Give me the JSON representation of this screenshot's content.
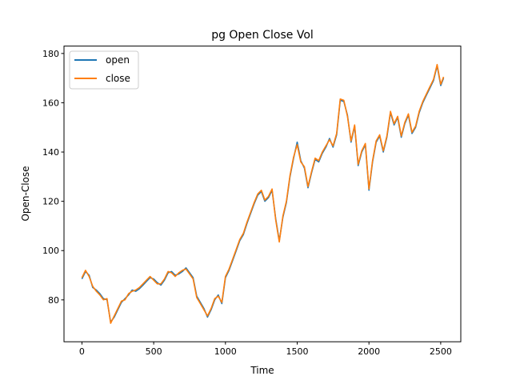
{
  "chart_data": {
    "type": "line",
    "title": "pg Open Close Vol",
    "xlabel": "Time",
    "ylabel": "Open-Close",
    "xlim": [
      -125,
      2640
    ],
    "ylim": [
      63,
      183
    ],
    "xticks": [
      0,
      500,
      1000,
      1500,
      2000,
      2500
    ],
    "yticks": [
      80,
      100,
      120,
      140,
      160,
      180
    ],
    "grid": false,
    "legend": {
      "position": "top-left"
    },
    "x": [
      0,
      25,
      50,
      75,
      100,
      125,
      150,
      175,
      200,
      225,
      250,
      275,
      300,
      325,
      350,
      375,
      400,
      425,
      450,
      475,
      500,
      525,
      550,
      575,
      600,
      625,
      650,
      675,
      700,
      725,
      750,
      775,
      800,
      825,
      850,
      875,
      900,
      925,
      950,
      975,
      1000,
      1025,
      1050,
      1075,
      1100,
      1125,
      1150,
      1175,
      1200,
      1225,
      1250,
      1275,
      1300,
      1325,
      1350,
      1375,
      1400,
      1425,
      1450,
      1475,
      1500,
      1525,
      1550,
      1575,
      1600,
      1625,
      1650,
      1675,
      1700,
      1725,
      1750,
      1775,
      1800,
      1825,
      1850,
      1875,
      1900,
      1925,
      1950,
      1975,
      2000,
      2025,
      2050,
      2075,
      2100,
      2125,
      2150,
      2175,
      2200,
      2225,
      2250,
      2275,
      2300,
      2325,
      2350,
      2375,
      2400,
      2425,
      2450,
      2475,
      2500,
      2520
    ],
    "series": [
      {
        "name": "open",
        "color": "#1f77b4",
        "values": [
          88.5,
          91.5,
          90.0,
          85.0,
          84.0,
          82.5,
          80.5,
          80.0,
          71.0,
          73.0,
          76.0,
          79.0,
          80.5,
          82.0,
          84.0,
          83.5,
          84.5,
          86.0,
          87.5,
          89.0,
          88.5,
          87.0,
          86.0,
          88.0,
          91.0,
          91.5,
          90.0,
          90.5,
          91.5,
          93.0,
          91.0,
          89.0,
          81.5,
          79.0,
          76.5,
          73.0,
          76.0,
          80.0,
          82.0,
          78.5,
          89.0,
          92.0,
          96.0,
          100.0,
          104.0,
          106.5,
          111.0,
          115.0,
          119.0,
          122.5,
          124.0,
          120.0,
          121.5,
          124.5,
          113.0,
          104.0,
          113.5,
          119.5,
          130.0,
          137.5,
          144.0,
          136.5,
          133.5,
          125.5,
          131.5,
          137.0,
          136.0,
          139.5,
          142.0,
          145.5,
          142.0,
          147.0,
          161.0,
          160.5,
          155.0,
          144.0,
          150.5,
          134.5,
          140.0,
          143.0,
          124.5,
          136.0,
          144.0,
          146.5,
          140.0,
          146.0,
          156.0,
          151.0,
          154.0,
          146.0,
          151.5,
          155.0,
          147.5,
          150.0,
          156.0,
          160.0,
          163.0,
          166.0,
          169.0,
          175.0,
          167.0,
          170.0
        ]
      },
      {
        "name": "close",
        "color": "#ff7f0e",
        "values": [
          89.0,
          92.0,
          89.5,
          85.5,
          83.5,
          82.0,
          80.0,
          80.5,
          70.5,
          73.5,
          76.5,
          79.5,
          80.0,
          82.5,
          83.5,
          84.0,
          85.0,
          86.5,
          88.0,
          89.5,
          88.0,
          86.5,
          86.5,
          88.5,
          91.5,
          91.0,
          89.5,
          91.0,
          92.0,
          92.5,
          90.5,
          88.5,
          81.0,
          78.5,
          76.0,
          73.5,
          76.5,
          80.5,
          81.5,
          79.0,
          89.5,
          92.5,
          96.5,
          100.5,
          104.5,
          107.0,
          111.5,
          115.5,
          119.5,
          123.0,
          124.5,
          120.5,
          122.0,
          125.0,
          112.5,
          103.5,
          114.0,
          120.0,
          130.5,
          138.0,
          143.0,
          136.0,
          134.0,
          126.0,
          132.0,
          137.5,
          136.5,
          140.0,
          142.5,
          145.0,
          142.5,
          147.5,
          161.5,
          161.0,
          154.5,
          144.5,
          151.0,
          135.0,
          140.5,
          143.5,
          125.0,
          136.5,
          144.5,
          147.0,
          140.5,
          146.5,
          156.5,
          151.5,
          154.5,
          146.5,
          152.0,
          155.5,
          148.0,
          150.5,
          156.5,
          160.5,
          163.5,
          166.5,
          169.5,
          175.5,
          167.5,
          170.5
        ]
      }
    ]
  }
}
